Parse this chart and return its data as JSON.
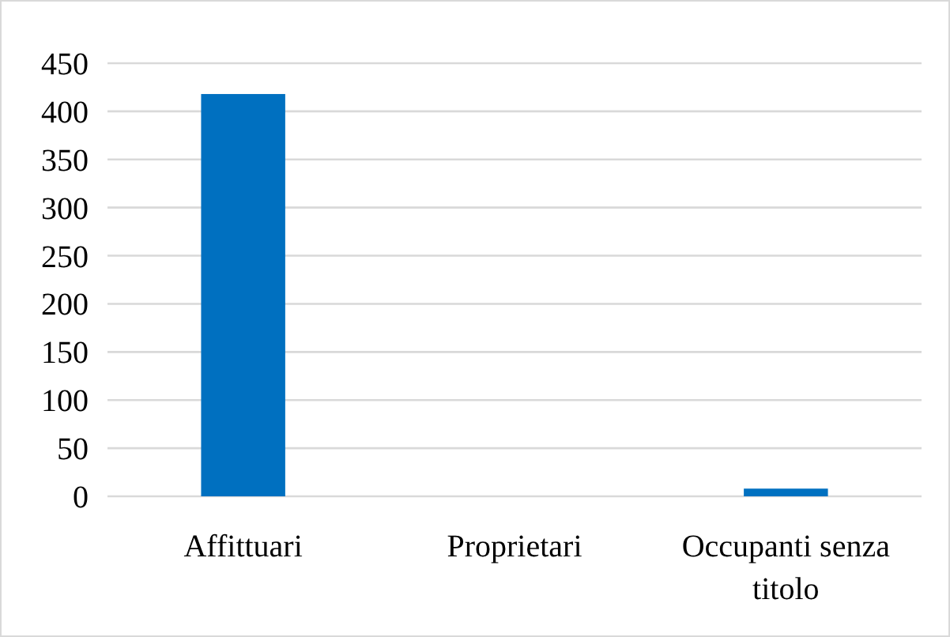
{
  "chart_data": {
    "type": "bar",
    "categories": [
      "Affittuari",
      "Proprietari",
      "Occupanti senza titolo"
    ],
    "values": [
      418,
      0,
      8
    ],
    "color": "#0070c0",
    "ylim": [
      0,
      450
    ],
    "yticks": [
      0,
      50,
      100,
      150,
      200,
      250,
      300,
      350,
      400,
      450
    ],
    "grid": "y"
  }
}
